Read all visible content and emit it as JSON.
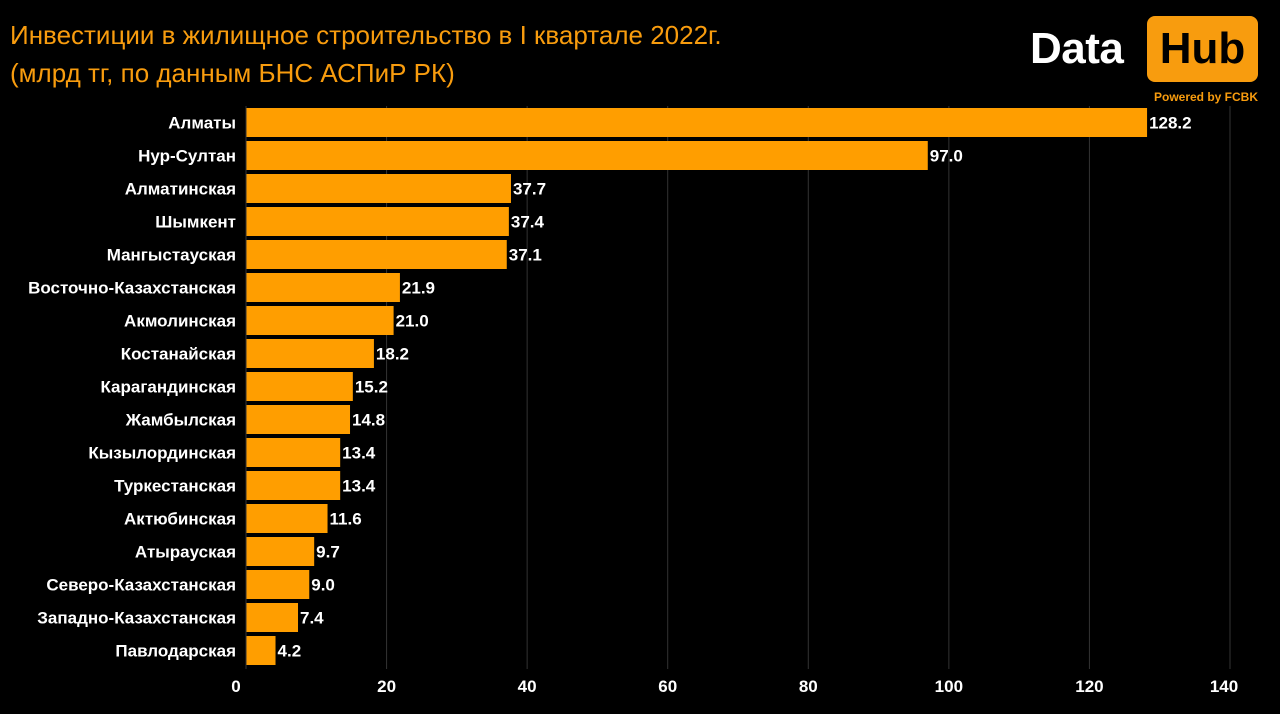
{
  "header": {
    "title_line1": "Инвестиции в жилищное строительство в I квартале 2022г.",
    "title_line2": "(млрд тг, по данным БНС АСПиР РК)"
  },
  "logo": {
    "word1": "Data",
    "word2": "Hub",
    "powered": "Powered by FCBK"
  },
  "colors": {
    "background": "#000000",
    "bar": "#ff9e00",
    "accent": "#f89c0e",
    "text": "#ffffff",
    "grid": "#333333"
  },
  "chart_data": {
    "type": "bar",
    "orientation": "horizontal",
    "categories": [
      "Алматы",
      "Нур-Султан",
      "Алматинская",
      "Шымкент",
      "Мангыстауская",
      "Восточно-Казахстанская",
      "Акмолинская",
      "Костанайская",
      "Карагандинская",
      "Жамбылская",
      "Кызылординская",
      "Туркестанская",
      "Актюбинская",
      "Атырауская",
      "Северо-Казахстанская",
      "Западно-Казахстанская",
      "Павлодарская"
    ],
    "values": [
      128.2,
      97.0,
      37.7,
      37.4,
      37.1,
      21.9,
      21.0,
      18.2,
      15.2,
      14.8,
      13.4,
      13.4,
      11.6,
      9.7,
      9.0,
      7.4,
      4.2
    ],
    "value_labels": [
      "128.2",
      "97.0",
      "37.7",
      "37.4",
      "37.1",
      "21.9",
      "21.0",
      "18.2",
      "15.2",
      "14.8",
      "13.4",
      "13.4",
      "11.6",
      "9.7",
      "9.0",
      "7.4",
      "4.2"
    ],
    "xlim": [
      0,
      140
    ],
    "xticks": [
      0,
      20,
      40,
      60,
      80,
      100,
      120,
      140
    ],
    "xtick_labels": [
      "0",
      "20",
      "40",
      "60",
      "80",
      "100",
      "120",
      "140"
    ],
    "grid": "vertical",
    "legend": "none"
  }
}
